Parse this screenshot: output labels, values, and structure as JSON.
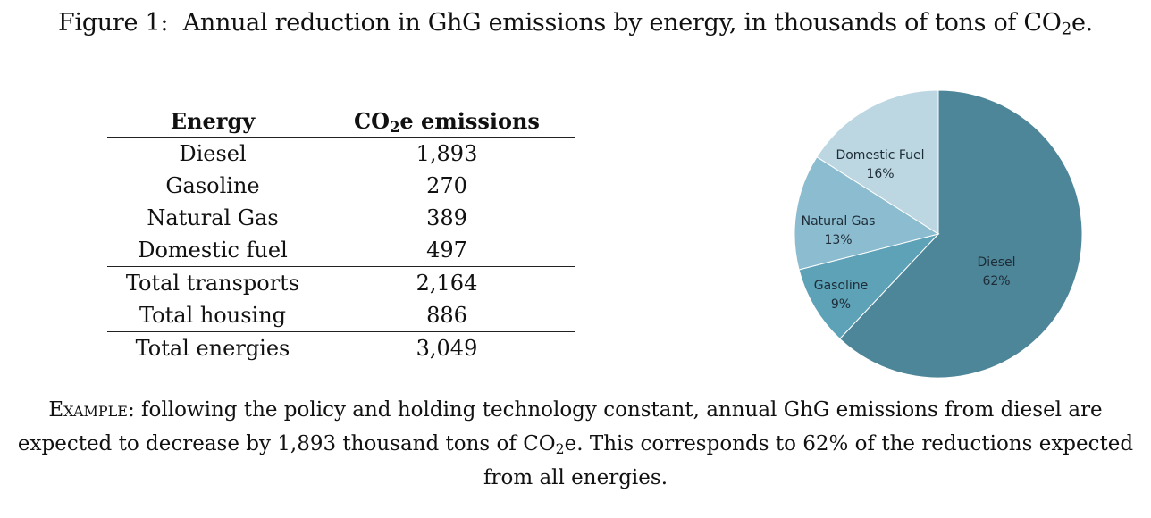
{
  "caption": {
    "prefix": "Figure 1:",
    "text_before": "Annual reduction in GhG emissions by energy, in thousands of tons of CO",
    "subscript": "2",
    "text_after": "e."
  },
  "table": {
    "headers": {
      "energy": "Energy",
      "emissions_before": "CO",
      "emissions_sub": "2",
      "emissions_after": "e emissions"
    },
    "rows": [
      {
        "energy": "Diesel",
        "value": "1,893"
      },
      {
        "energy": "Gasoline",
        "value": "270"
      },
      {
        "energy": "Natural Gas",
        "value": "389"
      },
      {
        "energy": "Domestic fuel",
        "value": "497"
      }
    ],
    "subtotals": [
      {
        "energy": "Total transports",
        "value": "2,164"
      },
      {
        "energy": "Total housing",
        "value": "886"
      }
    ],
    "total": {
      "energy": "Total energies",
      "value": "3,049"
    }
  },
  "chart_data": {
    "type": "pie",
    "slices": [
      {
        "label": "Diesel",
        "pct_label": "62%",
        "value": 62,
        "color": "#4e8699"
      },
      {
        "label": "Gasoline",
        "pct_label": "9%",
        "value": 9,
        "color": "#5ea2b8"
      },
      {
        "label": "Natural Gas",
        "pct_label": "13%",
        "value": 13,
        "color": "#8cbccf"
      },
      {
        "label": "Domestic Fuel",
        "pct_label": "16%",
        "value": 16,
        "color": "#bcd7e2"
      }
    ],
    "start": "12 o'clock",
    "direction": "clockwise"
  },
  "note": {
    "lead": "Example:",
    "line1": "following the policy and holding technology constant, annual GhG emissions from diesel are",
    "line2_before": "expected to decrease by 1,893 thousand tons of CO",
    "line2_sub": "2",
    "line2_after": "e. This corresponds to 62% of the reductions expected",
    "line3": "from all energies."
  }
}
